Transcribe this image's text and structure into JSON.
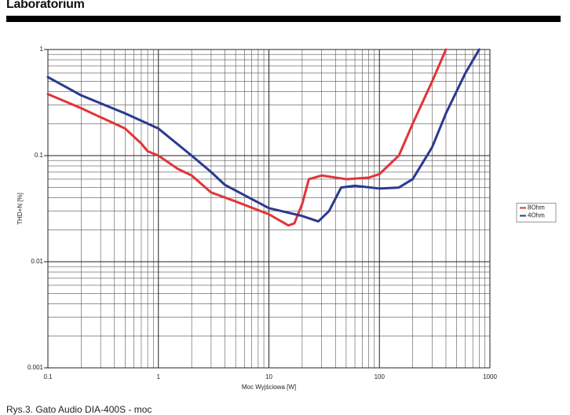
{
  "header": {
    "title": "Laboratorium"
  },
  "chart_data": {
    "type": "line",
    "xscale": "log",
    "yscale": "log",
    "xlabel": "Moc Wyjściowa [W]",
    "ylabel": "THD+N [%]",
    "xlim": [
      0.1,
      1000
    ],
    "ylim": [
      0.001,
      1
    ],
    "xticks": [
      0.1,
      1,
      10,
      100,
      1000
    ],
    "yticks": [
      0.001,
      0.01,
      0.1,
      1
    ],
    "grid": true,
    "legend": "right",
    "series": [
      {
        "name": "8Ohm",
        "color": "#e0353a",
        "x": [
          0.1,
          0.2,
          0.3,
          0.5,
          0.7,
          0.8,
          1,
          1.5,
          2,
          3,
          5,
          10,
          15,
          17,
          20,
          23,
          30,
          50,
          80,
          100,
          150,
          200,
          300,
          400
        ],
        "values": [
          0.38,
          0.28,
          0.23,
          0.18,
          0.13,
          0.11,
          0.1,
          0.075,
          0.065,
          0.045,
          0.037,
          0.028,
          0.022,
          0.023,
          0.035,
          0.06,
          0.065,
          0.06,
          0.062,
          0.067,
          0.1,
          0.2,
          0.5,
          1
        ]
      },
      {
        "name": "4Ohm",
        "color": "#2b3a8f",
        "x": [
          0.1,
          0.2,
          0.5,
          1,
          2,
          3,
          4,
          10,
          20,
          28,
          35,
          45,
          60,
          100,
          150,
          200,
          300,
          400,
          600,
          800
        ],
        "values": [
          0.55,
          0.37,
          0.25,
          0.18,
          0.1,
          0.07,
          0.053,
          0.032,
          0.027,
          0.024,
          0.03,
          0.05,
          0.052,
          0.049,
          0.05,
          0.06,
          0.12,
          0.25,
          0.6,
          1
        ]
      }
    ]
  },
  "caption": "Rys.3. Gato Audio DIA-400S - moc"
}
